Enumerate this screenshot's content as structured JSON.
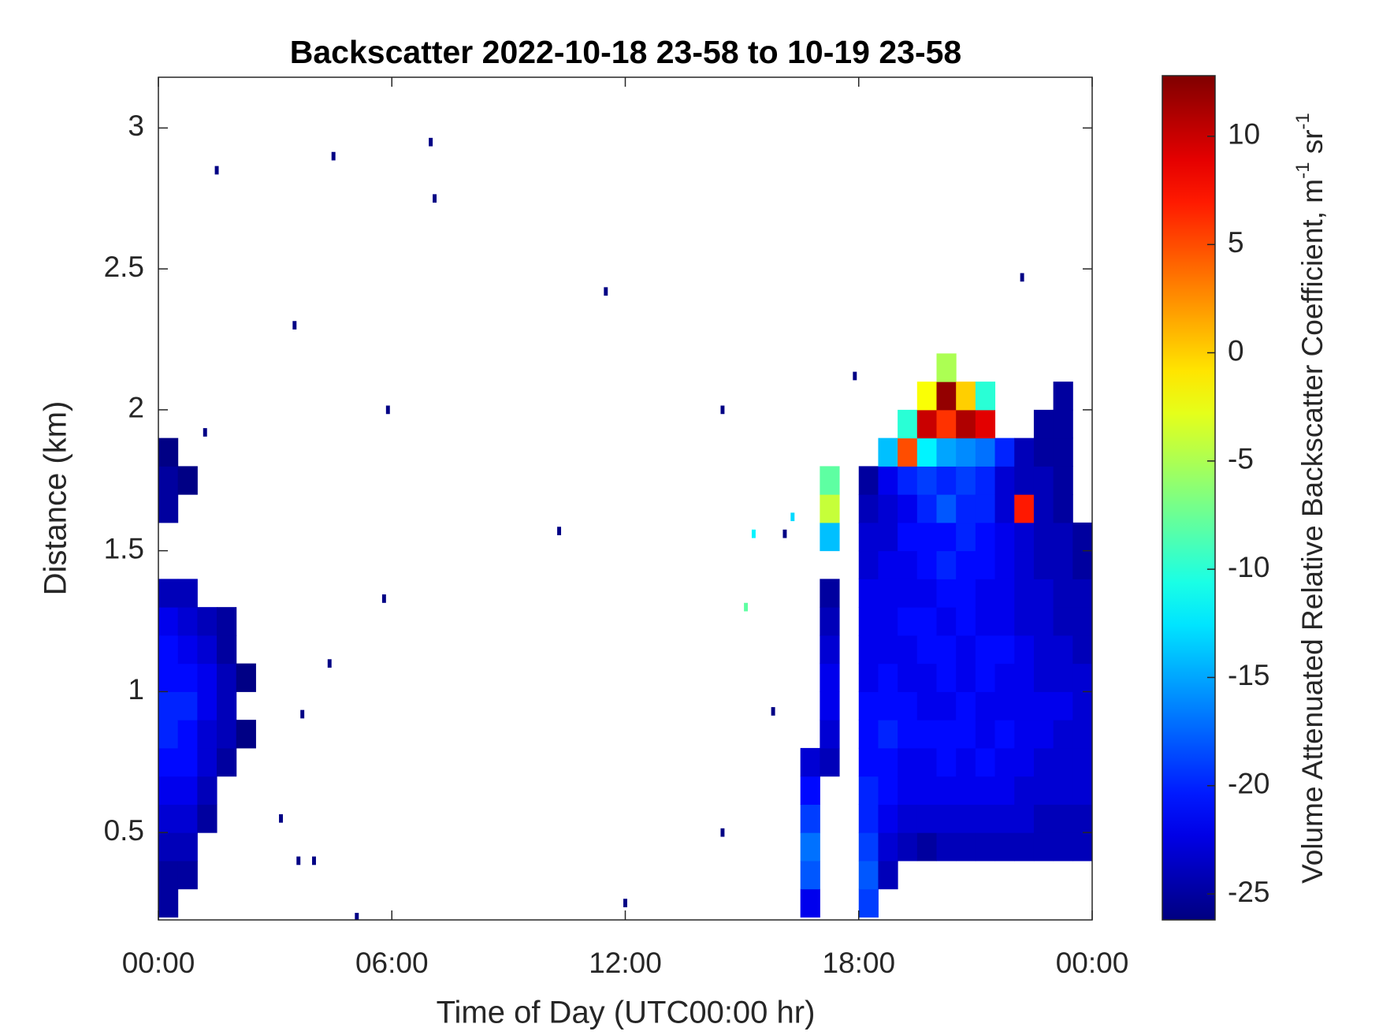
{
  "chart_data": {
    "type": "heatmap",
    "title": "Backscatter 2022-10-18 23-58 to 10-19 23-58",
    "x_label": "Time of Day (UTC00:00 hr)",
    "y_label": "Distance (km)",
    "colorbar_label": [
      "Volume Attenuated Relative Backscatter Coefficient, m",
      "-1",
      " sr",
      "-1"
    ],
    "colormap": "jet",
    "xlim": [
      0,
      24
    ],
    "xticks": [
      {
        "value": 0,
        "label": "00:00"
      },
      {
        "value": 6,
        "label": "06:00"
      },
      {
        "value": 12,
        "label": "12:00"
      },
      {
        "value": 18,
        "label": "18:00"
      },
      {
        "value": 24,
        "label": "00:00"
      }
    ],
    "ylim": [
      0.19,
      3.18
    ],
    "yticks": [
      0.5,
      1,
      1.5,
      2,
      2.5,
      3
    ],
    "clim": [
      -26.2,
      12.8
    ],
    "cticks": [
      -25,
      -20,
      -15,
      -10,
      -5,
      0,
      5,
      10
    ],
    "cells": [
      [
        0.25,
        0.25,
        -25
      ],
      [
        0.25,
        0.35,
        -25
      ],
      [
        0.25,
        0.45,
        -24
      ],
      [
        0.25,
        0.55,
        -23
      ],
      [
        0.25,
        0.65,
        -22
      ],
      [
        0.25,
        0.75,
        -21
      ],
      [
        0.25,
        0.85,
        -20
      ],
      [
        0.25,
        0.95,
        -20
      ],
      [
        0.25,
        1.05,
        -21
      ],
      [
        0.25,
        1.15,
        -21
      ],
      [
        0.25,
        1.25,
        -22
      ],
      [
        0.25,
        1.35,
        -24
      ],
      [
        0.25,
        1.65,
        -25
      ],
      [
        0.25,
        1.75,
        -25
      ],
      [
        0.25,
        1.85,
        -26
      ],
      [
        0.75,
        0.35,
        -25
      ],
      [
        0.75,
        0.45,
        -24
      ],
      [
        0.75,
        0.55,
        -23
      ],
      [
        0.75,
        0.65,
        -22
      ],
      [
        0.75,
        0.75,
        -21
      ],
      [
        0.75,
        0.85,
        -21
      ],
      [
        0.75,
        0.95,
        -20
      ],
      [
        0.75,
        1.05,
        -21
      ],
      [
        0.75,
        1.15,
        -22
      ],
      [
        0.75,
        1.25,
        -23
      ],
      [
        0.75,
        1.35,
        -24
      ],
      [
        0.75,
        1.75,
        -26
      ],
      [
        1.25,
        0.55,
        -25
      ],
      [
        1.25,
        0.65,
        -24
      ],
      [
        1.25,
        0.75,
        -23
      ],
      [
        1.25,
        0.85,
        -23
      ],
      [
        1.25,
        0.95,
        -22
      ],
      [
        1.25,
        1.05,
        -22
      ],
      [
        1.25,
        1.15,
        -23
      ],
      [
        1.25,
        1.25,
        -24
      ],
      [
        1.75,
        0.75,
        -25
      ],
      [
        1.75,
        0.85,
        -24
      ],
      [
        1.75,
        0.95,
        -24
      ],
      [
        1.75,
        1.05,
        -24
      ],
      [
        1.75,
        1.15,
        -25
      ],
      [
        1.75,
        1.25,
        -25
      ],
      [
        2.25,
        0.85,
        -26
      ],
      [
        2.25,
        1.05,
        -26
      ],
      [
        16.75,
        0.25,
        -22
      ],
      [
        16.75,
        0.35,
        -18
      ],
      [
        16.75,
        0.45,
        -17
      ],
      [
        16.75,
        0.55,
        -19
      ],
      [
        16.75,
        0.65,
        -21
      ],
      [
        16.75,
        0.75,
        -23
      ],
      [
        17.25,
        0.75,
        -24
      ],
      [
        17.25,
        0.85,
        -23
      ],
      [
        17.25,
        0.95,
        -22
      ],
      [
        17.25,
        1.05,
        -22
      ],
      [
        17.25,
        1.15,
        -23
      ],
      [
        17.25,
        1.25,
        -24
      ],
      [
        17.25,
        1.35,
        -25
      ],
      [
        17.25,
        1.55,
        -14
      ],
      [
        17.25,
        1.65,
        -4
      ],
      [
        17.25,
        1.75,
        -8
      ],
      [
        18.25,
        0.25,
        -19
      ],
      [
        18.25,
        0.35,
        -18
      ],
      [
        18.25,
        0.45,
        -19
      ],
      [
        18.25,
        0.55,
        -20
      ],
      [
        18.25,
        0.65,
        -20
      ],
      [
        18.25,
        0.75,
        -21
      ],
      [
        18.25,
        0.85,
        -21
      ],
      [
        18.25,
        0.95,
        -21
      ],
      [
        18.25,
        1.05,
        -22
      ],
      [
        18.25,
        1.15,
        -22
      ],
      [
        18.25,
        1.25,
        -22
      ],
      [
        18.25,
        1.35,
        -22
      ],
      [
        18.25,
        1.45,
        -23
      ],
      [
        18.25,
        1.55,
        -23
      ],
      [
        18.25,
        1.65,
        -24
      ],
      [
        18.25,
        1.75,
        -25
      ],
      [
        18.75,
        0.35,
        -24
      ],
      [
        18.75,
        0.45,
        -23
      ],
      [
        18.75,
        0.55,
        -22
      ],
      [
        18.75,
        0.65,
        -21
      ],
      [
        18.75,
        0.75,
        -21
      ],
      [
        18.75,
        0.85,
        -20
      ],
      [
        18.75,
        0.95,
        -21
      ],
      [
        18.75,
        1.05,
        -21
      ],
      [
        18.75,
        1.15,
        -22
      ],
      [
        18.75,
        1.25,
        -22
      ],
      [
        18.75,
        1.35,
        -22
      ],
      [
        18.75,
        1.45,
        -22
      ],
      [
        18.75,
        1.55,
        -23
      ],
      [
        18.75,
        1.65,
        -23
      ],
      [
        18.75,
        1.75,
        -22
      ],
      [
        18.75,
        1.85,
        -14
      ],
      [
        19.25,
        0.45,
        -24
      ],
      [
        19.25,
        0.55,
        -23
      ],
      [
        19.25,
        0.65,
        -22
      ],
      [
        19.25,
        0.75,
        -22
      ],
      [
        19.25,
        0.85,
        -21
      ],
      [
        19.25,
        0.95,
        -21
      ],
      [
        19.25,
        1.05,
        -22
      ],
      [
        19.25,
        1.15,
        -22
      ],
      [
        19.25,
        1.25,
        -21
      ],
      [
        19.25,
        1.35,
        -22
      ],
      [
        19.25,
        1.45,
        -22
      ],
      [
        19.25,
        1.55,
        -21
      ],
      [
        19.25,
        1.65,
        -22
      ],
      [
        19.25,
        1.75,
        -20
      ],
      [
        19.25,
        1.85,
        5
      ],
      [
        19.25,
        1.95,
        -10
      ],
      [
        19.75,
        0.45,
        -25
      ],
      [
        19.75,
        0.55,
        -23
      ],
      [
        19.75,
        0.65,
        -22
      ],
      [
        19.75,
        0.75,
        -22
      ],
      [
        19.75,
        0.85,
        -21
      ],
      [
        19.75,
        0.95,
        -22
      ],
      [
        19.75,
        1.05,
        -22
      ],
      [
        19.75,
        1.15,
        -21
      ],
      [
        19.75,
        1.25,
        -21
      ],
      [
        19.75,
        1.35,
        -22
      ],
      [
        19.75,
        1.45,
        -21
      ],
      [
        19.75,
        1.55,
        -21
      ],
      [
        19.75,
        1.65,
        -20
      ],
      [
        19.75,
        1.75,
        -19
      ],
      [
        19.75,
        1.85,
        -12
      ],
      [
        19.75,
        1.95,
        10
      ],
      [
        19.75,
        2.05,
        -2
      ],
      [
        20.25,
        0.45,
        -24
      ],
      [
        20.25,
        0.55,
        -23
      ],
      [
        20.25,
        0.65,
        -22
      ],
      [
        20.25,
        0.75,
        -21
      ],
      [
        20.25,
        0.85,
        -21
      ],
      [
        20.25,
        0.95,
        -22
      ],
      [
        20.25,
        1.05,
        -21
      ],
      [
        20.25,
        1.15,
        -21
      ],
      [
        20.25,
        1.25,
        -22
      ],
      [
        20.25,
        1.35,
        -21
      ],
      [
        20.25,
        1.45,
        -20
      ],
      [
        20.25,
        1.55,
        -21
      ],
      [
        20.25,
        1.65,
        -18
      ],
      [
        20.25,
        1.75,
        -20
      ],
      [
        20.25,
        1.85,
        -15
      ],
      [
        20.25,
        1.95,
        6
      ],
      [
        20.25,
        2.05,
        12
      ],
      [
        20.25,
        2.15,
        -5
      ],
      [
        20.75,
        0.45,
        -24
      ],
      [
        20.75,
        0.55,
        -23
      ],
      [
        20.75,
        0.65,
        -22
      ],
      [
        20.75,
        0.75,
        -22
      ],
      [
        20.75,
        0.85,
        -21
      ],
      [
        20.75,
        0.95,
        -21
      ],
      [
        20.75,
        1.05,
        -22
      ],
      [
        20.75,
        1.15,
        -22
      ],
      [
        20.75,
        1.25,
        -21
      ],
      [
        20.75,
        1.35,
        -21
      ],
      [
        20.75,
        1.45,
        -21
      ],
      [
        20.75,
        1.55,
        -20
      ],
      [
        20.75,
        1.65,
        -20
      ],
      [
        20.75,
        1.75,
        -19
      ],
      [
        20.75,
        1.85,
        -16
      ],
      [
        20.75,
        1.95,
        11
      ],
      [
        20.75,
        2.05,
        0
      ],
      [
        21.25,
        0.45,
        -24
      ],
      [
        21.25,
        0.55,
        -23
      ],
      [
        21.25,
        0.65,
        -22
      ],
      [
        21.25,
        0.75,
        -21
      ],
      [
        21.25,
        0.85,
        -22
      ],
      [
        21.25,
        0.95,
        -22
      ],
      [
        21.25,
        1.05,
        -21
      ],
      [
        21.25,
        1.15,
        -21
      ],
      [
        21.25,
        1.25,
        -22
      ],
      [
        21.25,
        1.35,
        -22
      ],
      [
        21.25,
        1.45,
        -21
      ],
      [
        21.25,
        1.55,
        -21
      ],
      [
        21.25,
        1.65,
        -20
      ],
      [
        21.25,
        1.75,
        -20
      ],
      [
        21.25,
        1.85,
        -17
      ],
      [
        21.25,
        1.95,
        9
      ],
      [
        21.25,
        2.05,
        -10
      ],
      [
        21.75,
        0.45,
        -24
      ],
      [
        21.75,
        0.55,
        -23
      ],
      [
        21.75,
        0.65,
        -22
      ],
      [
        21.75,
        0.75,
        -22
      ],
      [
        21.75,
        0.85,
        -21
      ],
      [
        21.75,
        0.95,
        -22
      ],
      [
        21.75,
        1.05,
        -22
      ],
      [
        21.75,
        1.15,
        -21
      ],
      [
        21.75,
        1.25,
        -22
      ],
      [
        21.75,
        1.35,
        -22
      ],
      [
        21.75,
        1.45,
        -22
      ],
      [
        21.75,
        1.55,
        -22
      ],
      [
        21.75,
        1.65,
        -23
      ],
      [
        21.75,
        1.75,
        -23
      ],
      [
        21.75,
        1.85,
        -20
      ],
      [
        22.25,
        0.45,
        -24
      ],
      [
        22.25,
        0.55,
        -23
      ],
      [
        22.25,
        0.65,
        -23
      ],
      [
        22.25,
        0.75,
        -22
      ],
      [
        22.25,
        0.85,
        -22
      ],
      [
        22.25,
        0.95,
        -22
      ],
      [
        22.25,
        1.05,
        -22
      ],
      [
        22.25,
        1.15,
        -22
      ],
      [
        22.25,
        1.25,
        -23
      ],
      [
        22.25,
        1.35,
        -23
      ],
      [
        22.25,
        1.45,
        -23
      ],
      [
        22.25,
        1.55,
        -23
      ],
      [
        22.25,
        1.65,
        7
      ],
      [
        22.25,
        1.75,
        -24
      ],
      [
        22.25,
        1.85,
        -24
      ],
      [
        22.75,
        0.45,
        -24
      ],
      [
        22.75,
        0.55,
        -24
      ],
      [
        22.75,
        0.65,
        -23
      ],
      [
        22.75,
        0.75,
        -23
      ],
      [
        22.75,
        0.85,
        -22
      ],
      [
        22.75,
        0.95,
        -22
      ],
      [
        22.75,
        1.05,
        -23
      ],
      [
        22.75,
        1.15,
        -23
      ],
      [
        22.75,
        1.25,
        -23
      ],
      [
        22.75,
        1.35,
        -23
      ],
      [
        22.75,
        1.45,
        -24
      ],
      [
        22.75,
        1.55,
        -24
      ],
      [
        22.75,
        1.65,
        -24
      ],
      [
        22.75,
        1.75,
        -24
      ],
      [
        22.75,
        1.85,
        -25
      ],
      [
        22.75,
        1.95,
        -25
      ],
      [
        23.25,
        0.45,
        -24
      ],
      [
        23.25,
        0.55,
        -24
      ],
      [
        23.25,
        0.65,
        -23
      ],
      [
        23.25,
        0.75,
        -23
      ],
      [
        23.25,
        0.85,
        -23
      ],
      [
        23.25,
        0.95,
        -22
      ],
      [
        23.25,
        1.05,
        -23
      ],
      [
        23.25,
        1.15,
        -23
      ],
      [
        23.25,
        1.25,
        -24
      ],
      [
        23.25,
        1.35,
        -24
      ],
      [
        23.25,
        1.45,
        -24
      ],
      [
        23.25,
        1.55,
        -24
      ],
      [
        23.25,
        1.65,
        -25
      ],
      [
        23.25,
        1.75,
        -25
      ],
      [
        23.25,
        1.85,
        -25
      ],
      [
        23.25,
        1.95,
        -25
      ],
      [
        23.25,
        2.05,
        -25
      ],
      [
        23.75,
        0.45,
        -24
      ],
      [
        23.75,
        0.55,
        -24
      ],
      [
        23.75,
        0.65,
        -23
      ],
      [
        23.75,
        0.75,
        -23
      ],
      [
        23.75,
        0.85,
        -23
      ],
      [
        23.75,
        0.95,
        -23
      ],
      [
        23.75,
        1.05,
        -23
      ],
      [
        23.75,
        1.15,
        -24
      ],
      [
        23.75,
        1.25,
        -24
      ],
      [
        23.75,
        1.35,
        -24
      ],
      [
        23.75,
        1.45,
        -25
      ],
      [
        23.75,
        1.55,
        -25
      ]
    ],
    "points": [
      [
        1.5,
        2.85,
        -26
      ],
      [
        4.5,
        2.9,
        -26
      ],
      [
        7.0,
        2.95,
        -26
      ],
      [
        7.1,
        2.75,
        -26
      ],
      [
        11.5,
        2.42,
        -26
      ],
      [
        3.5,
        2.3,
        -26
      ],
      [
        5.9,
        2.0,
        -26
      ],
      [
        14.5,
        2.0,
        -26
      ],
      [
        1.2,
        1.92,
        -26
      ],
      [
        10.3,
        1.57,
        -26
      ],
      [
        5.8,
        1.33,
        -26
      ],
      [
        4.4,
        1.1,
        -26
      ],
      [
        3.7,
        0.92,
        -26
      ],
      [
        3.15,
        0.55,
        -26
      ],
      [
        3.6,
        0.4,
        -26
      ],
      [
        4.0,
        0.4,
        -26
      ],
      [
        14.5,
        0.5,
        -26
      ],
      [
        12.0,
        0.25,
        -26
      ],
      [
        5.1,
        0.2,
        -26
      ],
      [
        15.8,
        0.93,
        -26
      ],
      [
        17.9,
        2.12,
        -26
      ],
      [
        22.2,
        2.47,
        -26
      ],
      [
        15.3,
        1.56,
        -12
      ],
      [
        15.1,
        1.3,
        -8
      ],
      [
        16.1,
        1.56,
        -26
      ],
      [
        16.3,
        1.62,
        -13
      ]
    ]
  }
}
